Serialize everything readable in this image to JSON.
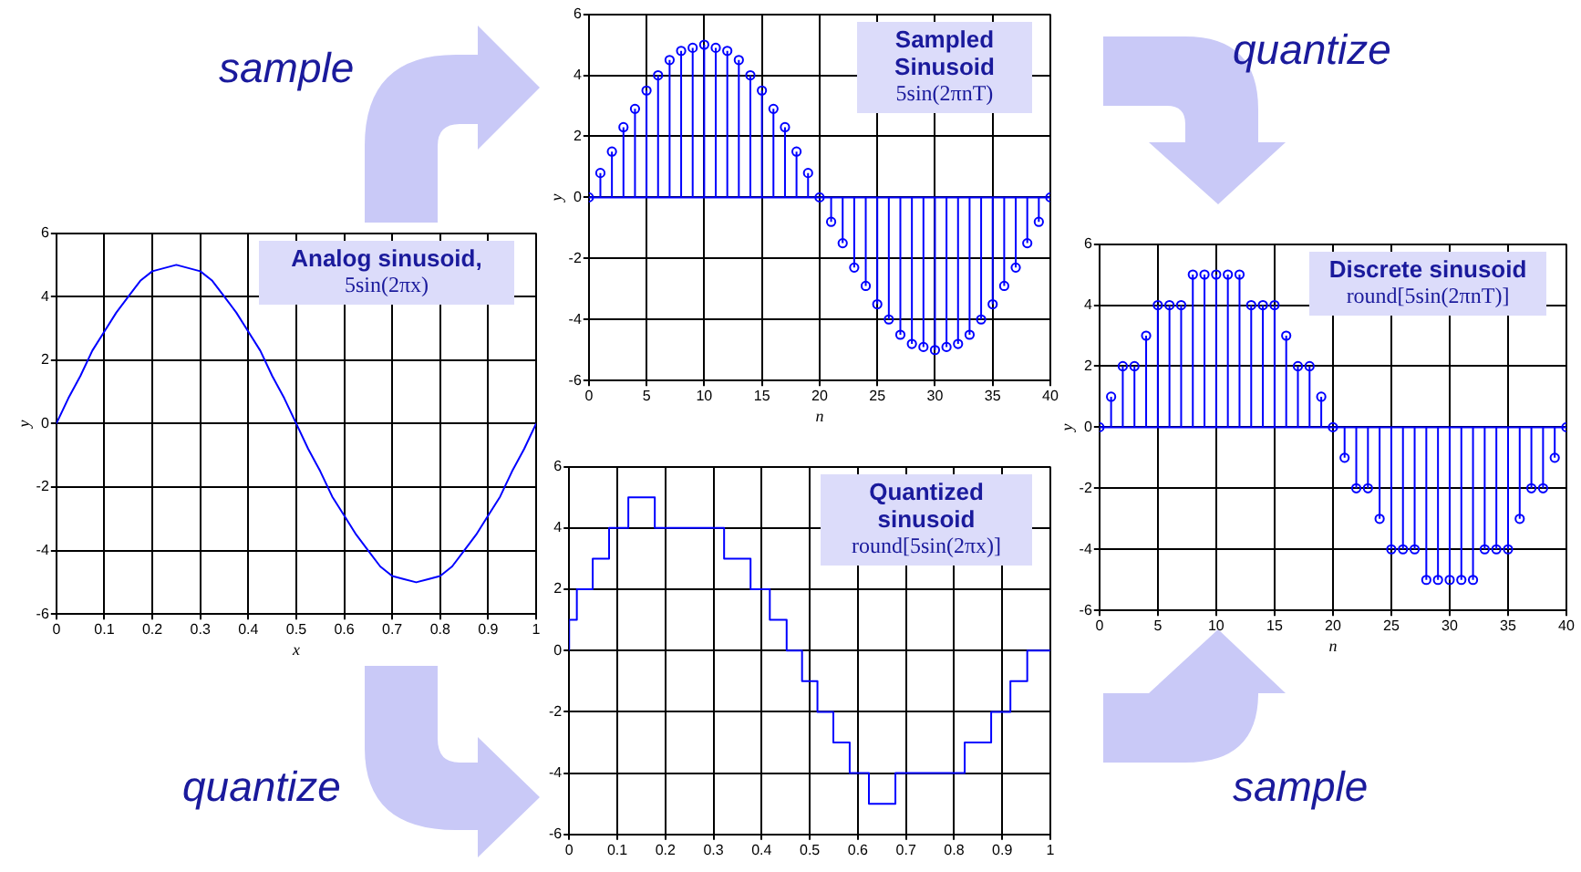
{
  "chart_data": [
    {
      "type": "line",
      "title": "Analog sinusoid,",
      "subtitle": "5sin(2πx)",
      "xlabel": "x",
      "ylabel": "y",
      "color": "#0000ff",
      "marker": "none",
      "grid": true,
      "x": [
        0,
        0.025,
        0.05,
        0.075,
        0.1,
        0.125,
        0.15,
        0.175,
        0.2,
        0.225,
        0.25,
        0.275,
        0.3,
        0.325,
        0.35,
        0.375,
        0.4,
        0.425,
        0.45,
        0.475,
        0.5,
        0.525,
        0.55,
        0.575,
        0.6,
        0.625,
        0.65,
        0.675,
        0.7,
        0.725,
        0.75,
        0.775,
        0.8,
        0.825,
        0.85,
        0.875,
        0.9,
        0.925,
        0.95,
        0.975,
        1
      ],
      "values": [
        0,
        0.8,
        1.5,
        2.3,
        2.9,
        3.5,
        4.0,
        4.5,
        4.8,
        4.9,
        5,
        4.9,
        4.8,
        4.5,
        4.0,
        3.5,
        2.9,
        2.3,
        1.5,
        0.8,
        0,
        -0.8,
        -1.5,
        -2.3,
        -2.9,
        -3.5,
        -4.0,
        -4.5,
        -4.8,
        -4.9,
        -5,
        -4.9,
        -4.8,
        -4.5,
        -4.0,
        -3.5,
        -2.9,
        -2.3,
        -1.5,
        -0.8,
        0
      ],
      "xlim": [
        0,
        1
      ],
      "xticks": [
        0,
        0.1,
        0.2,
        0.3,
        0.4,
        0.5,
        0.6,
        0.7,
        0.8,
        0.9,
        1
      ],
      "ylim": [
        -6,
        6
      ],
      "yticks": [
        -6,
        -4,
        -2,
        0,
        2,
        4,
        6
      ],
      "annotations": [
        "sample",
        "quantize"
      ]
    },
    {
      "type": "lollipop",
      "title": "Sampled Sinusoid",
      "subtitle": "5sin(2πnT)",
      "xlabel": "n",
      "ylabel": "y",
      "color": "#0000ff",
      "marker": "circle",
      "grid": true,
      "x": [
        0,
        1,
        2,
        3,
        4,
        5,
        6,
        7,
        8,
        9,
        10,
        11,
        12,
        13,
        14,
        15,
        16,
        17,
        18,
        19,
        20,
        21,
        22,
        23,
        24,
        25,
        26,
        27,
        28,
        29,
        30,
        31,
        32,
        33,
        34,
        35,
        36,
        37,
        38,
        39,
        40
      ],
      "values": [
        0,
        0.8,
        1.5,
        2.3,
        2.9,
        3.5,
        4.0,
        4.5,
        4.8,
        4.9,
        5,
        4.9,
        4.8,
        4.5,
        4.0,
        3.5,
        2.9,
        2.3,
        1.5,
        0.8,
        0,
        -0.8,
        -1.5,
        -2.3,
        -2.9,
        -3.5,
        -4.0,
        -4.5,
        -4.8,
        -4.9,
        -5,
        -4.9,
        -4.8,
        -4.5,
        -4.0,
        -3.5,
        -2.9,
        -2.3,
        -1.5,
        -0.8,
        0
      ],
      "xlim": [
        0,
        40
      ],
      "xticks": [
        0,
        5,
        10,
        15,
        20,
        25,
        30,
        35,
        40
      ],
      "ylim": [
        -6,
        6
      ],
      "yticks": [
        -6,
        -4,
        -2,
        0,
        2,
        4,
        6
      ],
      "ref_lines": [
        {
          "axis": "y",
          "value": 0,
          "color": "#0000ff"
        }
      ],
      "annotations": [
        "quantize"
      ]
    },
    {
      "type": "step",
      "title": "Quantized sinusoid",
      "subtitle": "round[5sin(2πx)]",
      "color": "#0000ff",
      "marker": "none",
      "grid": true,
      "x": [
        0,
        0.016,
        0.049,
        0.083,
        0.123,
        0.178,
        0.322,
        0.377,
        0.417,
        0.452,
        0.484,
        0.516,
        0.549,
        0.583,
        0.623,
        0.678,
        0.822,
        0.877,
        0.917,
        0.952,
        0.984,
        1
      ],
      "values": [
        0,
        1,
        2,
        3,
        4,
        5,
        4,
        3,
        2,
        1,
        0,
        -1,
        -2,
        -3,
        -4,
        -5,
        -4,
        -3,
        -2,
        -1,
        0,
        0
      ],
      "xlim": [
        0,
        1
      ],
      "xticks": [
        0,
        0.1,
        0.2,
        0.3,
        0.4,
        0.5,
        0.6,
        0.7,
        0.8,
        0.9,
        1
      ],
      "ylim": [
        -6,
        6
      ],
      "yticks": [
        -6,
        -4,
        -2,
        0,
        2,
        4,
        6
      ],
      "annotations": [
        "sample"
      ]
    },
    {
      "type": "lollipop",
      "title": "Discrete sinusoid",
      "subtitle": "round[5sin(2πnT)]",
      "xlabel": "n",
      "ylabel": "y",
      "color": "#0000ff",
      "marker": "circle",
      "grid": true,
      "x": [
        0,
        1,
        2,
        3,
        4,
        5,
        6,
        7,
        8,
        9,
        10,
        11,
        12,
        13,
        14,
        15,
        16,
        17,
        18,
        19,
        20,
        21,
        22,
        23,
        24,
        25,
        26,
        27,
        28,
        29,
        30,
        31,
        32,
        33,
        34,
        35,
        36,
        37,
        38,
        39,
        40
      ],
      "values": [
        0,
        1,
        2,
        2,
        3,
        4,
        4,
        4,
        5,
        5,
        5,
        5,
        5,
        4,
        4,
        4,
        3,
        2,
        2,
        1,
        0,
        -1,
        -2,
        -2,
        -3,
        -4,
        -4,
        -4,
        -5,
        -5,
        -5,
        -5,
        -5,
        -4,
        -4,
        -4,
        -3,
        -2,
        -2,
        -1,
        0
      ],
      "ref_lines": [
        {
          "axis": "y",
          "value": 0,
          "color": "#0000ff"
        }
      ],
      "xlim": [
        0,
        40
      ],
      "xticks": [
        0,
        5,
        10,
        15,
        20,
        25,
        30,
        35,
        40
      ],
      "ylim": [
        -6,
        6
      ],
      "yticks": [
        -6,
        -4,
        -2,
        0,
        2,
        4,
        6
      ]
    }
  ]
}
